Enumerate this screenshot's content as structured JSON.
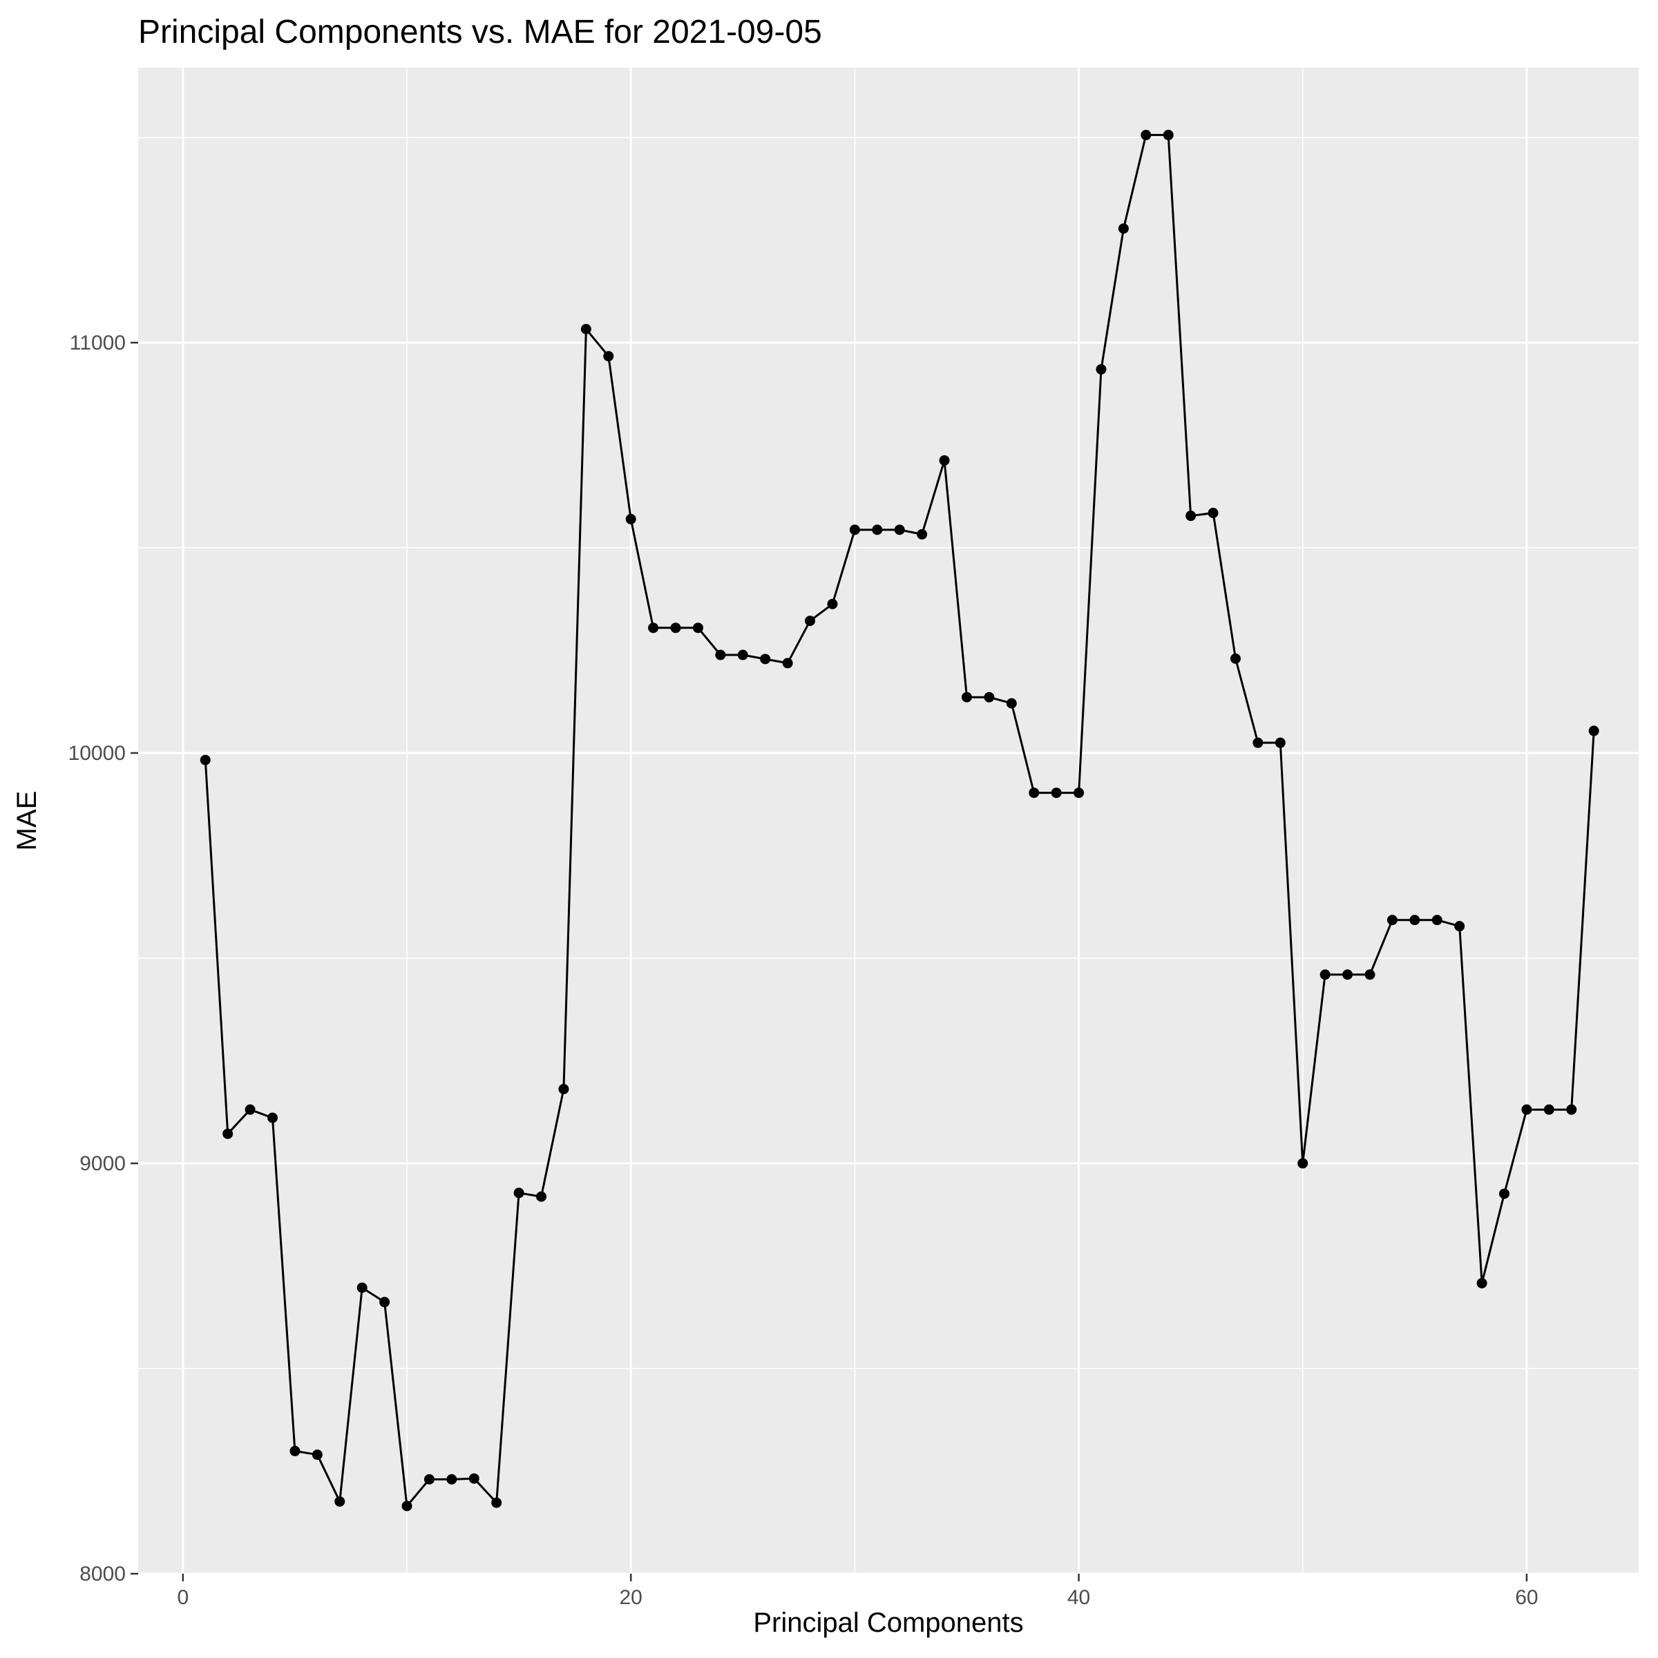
{
  "chart_data": {
    "type": "line",
    "title": "Principal Components vs. MAE for 2021-09-05",
    "xlabel": "Principal Components",
    "ylabel": "MAE",
    "xlim": [
      -2,
      65
    ],
    "ylim": [
      8000,
      11670
    ],
    "x_ticks": [
      0,
      20,
      40,
      60
    ],
    "x_tick_labels": [
      "0",
      "20",
      "40",
      "60"
    ],
    "y_ticks": [
      8000,
      9000,
      10000,
      11000
    ],
    "y_tick_labels": [
      "8000",
      "9000",
      "10000",
      "11000"
    ],
    "grid": true,
    "legend": "none",
    "colors": {
      "panel": "#ebebeb",
      "grid": "#ffffff",
      "line": "#000000",
      "point": "#000000"
    },
    "series": [
      {
        "x": [
          1,
          2,
          3,
          4,
          5,
          6,
          7,
          8,
          9,
          10,
          11,
          12,
          13,
          14,
          15,
          16,
          17,
          18,
          19,
          20,
          21,
          22,
          23,
          24,
          25,
          26,
          27,
          28,
          29,
          30,
          31,
          32,
          33,
          34,
          35,
          36,
          37,
          38,
          39,
          40,
          41,
          42,
          43,
          44,
          45,
          46,
          47,
          48,
          49,
          50,
          51,
          52,
          53,
          54,
          55,
          56,
          57,
          58,
          59,
          60,
          61,
          62,
          63
        ],
        "y": [
          9983,
          9072,
          9131,
          9111,
          8299,
          8290,
          8176,
          8697,
          8662,
          8165,
          8230,
          8230,
          8232,
          8173,
          8928,
          8919,
          9181,
          11033,
          10967,
          10570,
          10305,
          10305,
          10305,
          10239,
          10239,
          10229,
          10219,
          10322,
          10363,
          10544,
          10544,
          10544,
          10533,
          10713,
          10136,
          10136,
          10121,
          9903,
          9903,
          9903,
          10935,
          11278,
          11506,
          11506,
          10578,
          10585,
          10230,
          10025,
          10025,
          9000,
          9460,
          9460,
          9460,
          9593,
          9593,
          9593,
          9578,
          8708,
          8926,
          9131,
          9131,
          9131,
          10054
        ]
      }
    ]
  }
}
